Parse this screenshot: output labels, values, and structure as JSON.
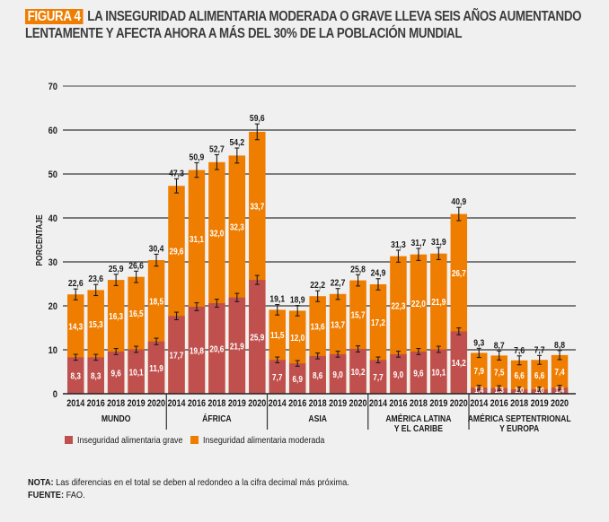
{
  "title": {
    "badge": "FIGURA 4",
    "line1": "LA INSEGURIDAD ALIMENTARIA MODERADA O GRAVE LLEVA SEIS AÑOS AUMENTANDO",
    "line2": "LENTAMENTE Y AFECTA AHORA A MÁS DEL 30% DE LA POBLACIÓN MUNDIAL"
  },
  "notes": {
    "nota_label": "NOTA:",
    "nota_text": " Las diferencias en el total se deben al redondeo a la cifra decimal más próxima.",
    "fuente_label": "FUENTE:",
    "fuente_text": " FAO."
  },
  "colors": {
    "grave": "#c0504d",
    "moderada": "#ef7d00",
    "badge": "#ef7d00"
  },
  "chart_data": {
    "type": "bar",
    "stacked": true,
    "title": "LA INSEGURIDAD ALIMENTARIA MODERADA O GRAVE LLEVA SEIS AÑOS AUMENTANDO LENTAMENTE Y AFECTA AHORA A MÁS DEL 30% DE LA POBLACIÓN MUNDIAL",
    "xlabel": "",
    "ylabel": "PORCENTAJE",
    "ylim": [
      0,
      70
    ],
    "yticks": [
      0,
      10,
      20,
      30,
      40,
      50,
      60,
      70
    ],
    "grid": true,
    "error_bars": true,
    "legend_position": "bottom-left",
    "years": [
      "2014",
      "2016",
      "2018",
      "2019",
      "2020"
    ],
    "series_names": [
      "Inseguridad alimentaria grave",
      "Inseguridad alimentaria moderada"
    ],
    "groups": [
      {
        "name": "MUNDO",
        "name2": "",
        "grave": [
          8.3,
          8.3,
          9.6,
          10.1,
          11.9
        ],
        "moderada": [
          14.3,
          15.3,
          16.3,
          16.5,
          18.5
        ],
        "total": [
          22.6,
          23.6,
          25.9,
          26.6,
          30.4
        ],
        "grave_labels": [
          "8,3",
          "8,3",
          "9,6",
          "10,1",
          "11,9"
        ],
        "moderada_labels": [
          "14,3",
          "15,3",
          "16,3",
          "16,5",
          "18,5"
        ],
        "total_labels": [
          "22,6",
          "23,6",
          "25,9",
          "26,6",
          "30,4"
        ]
      },
      {
        "name": "ÁFRICA",
        "name2": "",
        "grave": [
          17.7,
          19.8,
          20.6,
          21.9,
          25.9
        ],
        "moderada": [
          29.6,
          31.1,
          32.0,
          32.3,
          33.7
        ],
        "total": [
          47.3,
          50.9,
          52.7,
          54.2,
          59.6
        ],
        "grave_labels": [
          "17,7",
          "19,8",
          "20,6",
          "21,9",
          "25,9"
        ],
        "moderada_labels": [
          "29,6",
          "31,1",
          "32,0",
          "32,3",
          "33,7"
        ],
        "total_labels": [
          "47,3",
          "50,9",
          "52,7",
          "54,2",
          "59,6"
        ]
      },
      {
        "name": "ASIA",
        "name2": "",
        "grave": [
          7.7,
          6.9,
          8.6,
          9.0,
          10.2
        ],
        "moderada": [
          11.5,
          12.0,
          13.6,
          13.7,
          15.7
        ],
        "total": [
          19.1,
          18.9,
          22.2,
          22.7,
          25.8
        ],
        "grave_labels": [
          "7,7",
          "6,9",
          "8,6",
          "9,0",
          "10,2"
        ],
        "moderada_labels": [
          "11,5",
          "12,0",
          "13,6",
          "13,7",
          "15,7"
        ],
        "total_labels": [
          "19,1",
          "18,9",
          "22,2",
          "22,7",
          "25,8"
        ]
      },
      {
        "name": "AMÉRICA LATINA",
        "name2": "Y EL CARIBE",
        "grave": [
          7.7,
          9.0,
          9.6,
          10.1,
          14.2
        ],
        "moderada": [
          17.2,
          22.3,
          22.0,
          21.9,
          26.7
        ],
        "total": [
          24.9,
          31.3,
          31.7,
          31.9,
          40.9
        ],
        "grave_labels": [
          "7,7",
          "9,0",
          "9,6",
          "10,1",
          "14,2"
        ],
        "moderada_labels": [
          "17,2",
          "22,3",
          "22,0",
          "21,9",
          "26,7"
        ],
        "total_labels": [
          "24,9",
          "31,3",
          "31,7",
          "31,9",
          "40,9"
        ]
      },
      {
        "name": "AMÉRICA SEPTENTRIONAL",
        "name2": "Y EUROPA",
        "grave": [
          1.4,
          1.3,
          1.0,
          1.0,
          1.4
        ],
        "moderada": [
          7.9,
          7.5,
          6.6,
          6.6,
          7.4
        ],
        "total": [
          9.3,
          8.7,
          7.6,
          7.7,
          8.8
        ],
        "grave_labels": [
          "1,4",
          "1,3",
          "1,0",
          "1,0",
          "1,4"
        ],
        "moderada_labels": [
          "7,9",
          "7,5",
          "6,6",
          "6,6",
          "7,4"
        ],
        "total_labels": [
          "9,3",
          "8,7",
          "7,6",
          "7,7",
          "8,8"
        ]
      }
    ]
  }
}
